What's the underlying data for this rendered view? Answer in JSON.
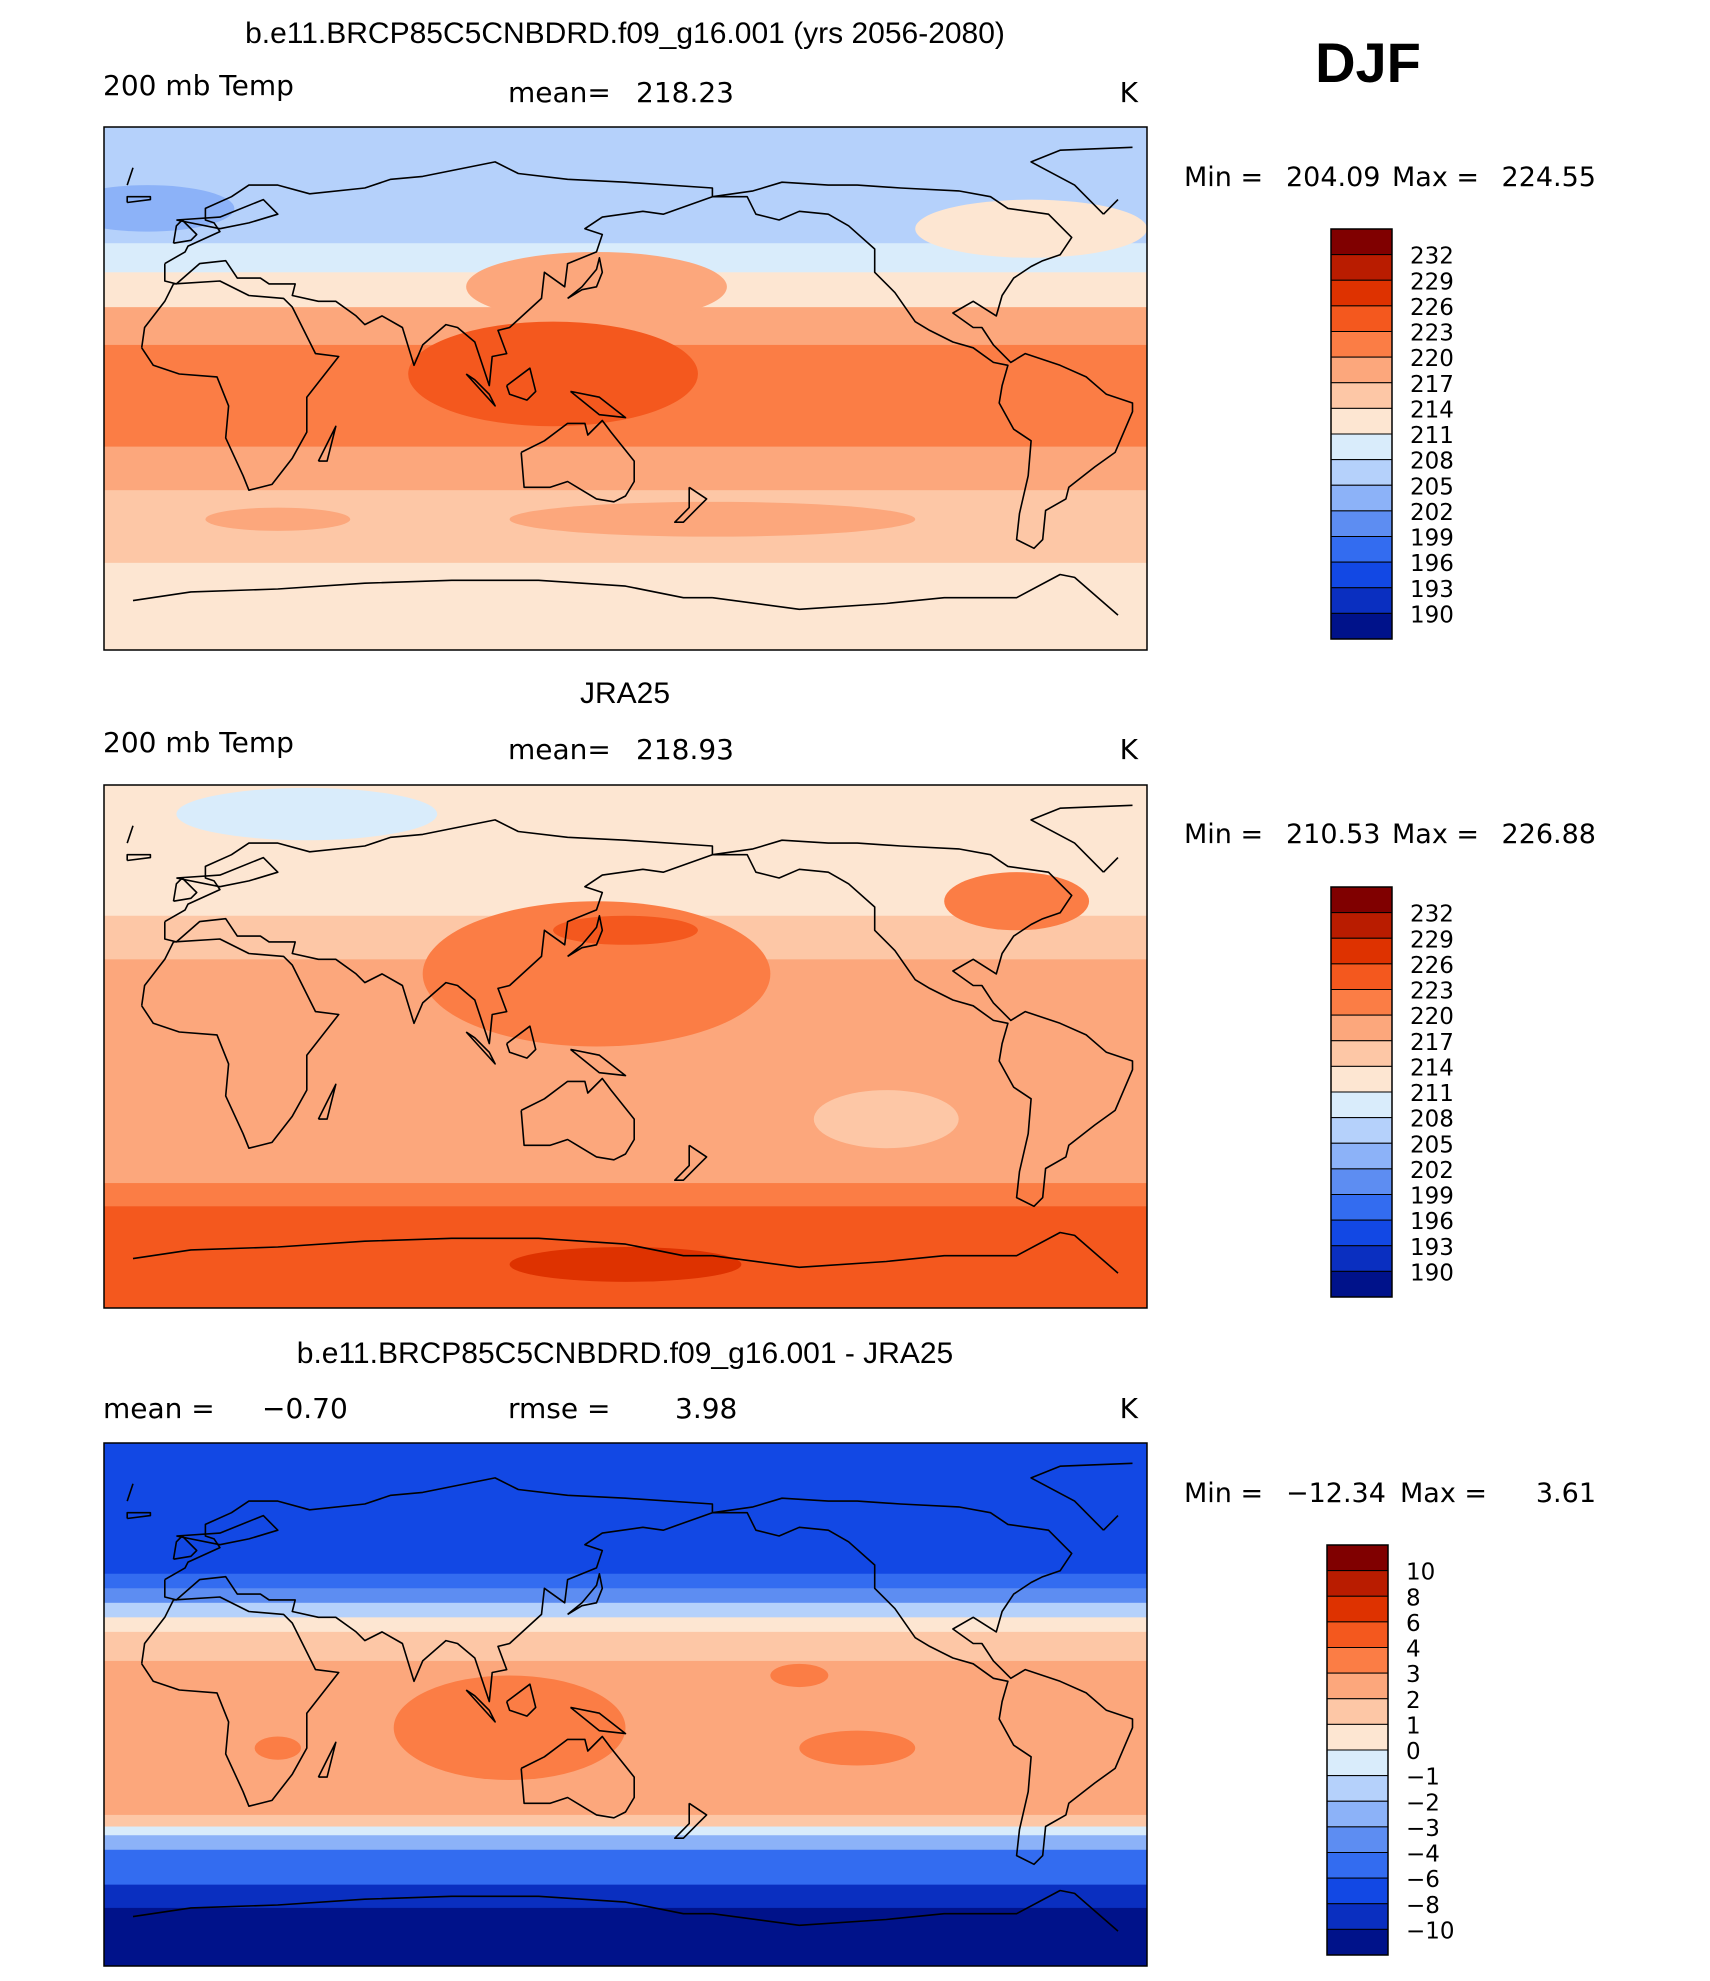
{
  "season": "DJF",
  "chart_data": [
    {
      "type": "heatmap",
      "title": "b.e11.BRCP85C5CNBDRD.f09_g16.001 (yrs 2056-2080)",
      "variable": "200 mb Temp",
      "stat_label": "mean=",
      "stat_value": "218.23",
      "units": "K",
      "min": "204.09",
      "max": "224.55",
      "levels": [
        "232",
        "229",
        "226",
        "223",
        "220",
        "217",
        "214",
        "211",
        "208",
        "205",
        "202",
        "199",
        "196",
        "193",
        "190"
      ],
      "colors": [
        "#800000",
        "#b91c00",
        "#de3200",
        "#f4581e",
        "#fb7d45",
        "#fca77c",
        "#fdc7a6",
        "#fde6d2",
        "#d9ecfb",
        "#b5d1fb",
        "#8cb2f8",
        "#5d8df2",
        "#336cf0",
        "#1248e4",
        "#0a2fc0",
        "#00128a"
      ],
      "zones": [
        {
          "lat": 90,
          "level": 9
        },
        {
          "lat": 60,
          "level": 9
        },
        {
          "lat": 50,
          "level": 8
        },
        {
          "lat": 40,
          "level": 7
        },
        {
          "lat": 28,
          "level": 5
        },
        {
          "lat": 15,
          "level": 4
        },
        {
          "lat": 0,
          "level": 4
        },
        {
          "lat": -20,
          "level": 5
        },
        {
          "lat": -35,
          "level": 6
        },
        {
          "lat": -50,
          "level": 6
        },
        {
          "lat": -60,
          "level": 7
        },
        {
          "lat": -90,
          "level": 7
        }
      ],
      "features": [
        {
          "lon": 125,
          "lat": 5,
          "rx": 50,
          "ry": 18,
          "level": 3
        },
        {
          "lon": 140,
          "lat": 35,
          "rx": 45,
          "ry": 12,
          "level": 5
        },
        {
          "lon": -70,
          "lat": 55,
          "rx": 40,
          "ry": 10,
          "level": 7
        },
        {
          "lon": -15,
          "lat": 62,
          "rx": 30,
          "ry": 8,
          "level": 10
        },
        {
          "lon": 180,
          "lat": -45,
          "rx": 70,
          "ry": 6,
          "level": 5
        },
        {
          "lon": 30,
          "lat": -45,
          "rx": 25,
          "ry": 4,
          "level": 5
        }
      ]
    },
    {
      "type": "heatmap",
      "title": "JRA25",
      "variable": "200 mb Temp",
      "stat_label": "mean=",
      "stat_value": "218.93",
      "units": "K",
      "min": "210.53",
      "max": "226.88",
      "levels": [
        "232",
        "229",
        "226",
        "223",
        "220",
        "217",
        "214",
        "211",
        "208",
        "205",
        "202",
        "199",
        "196",
        "193",
        "190"
      ],
      "colors": [
        "#800000",
        "#b91c00",
        "#de3200",
        "#f4581e",
        "#fb7d45",
        "#fca77c",
        "#fdc7a6",
        "#fde6d2",
        "#d9ecfb",
        "#b5d1fb",
        "#8cb2f8",
        "#5d8df2",
        "#336cf0",
        "#1248e4",
        "#0a2fc0",
        "#00128a"
      ],
      "zones": [
        {
          "lat": 90,
          "level": 7
        },
        {
          "lat": 60,
          "level": 7
        },
        {
          "lat": 45,
          "level": 6
        },
        {
          "lat": 30,
          "level": 5
        },
        {
          "lat": 0,
          "level": 5
        },
        {
          "lat": -25,
          "level": 5
        },
        {
          "lat": -40,
          "level": 5
        },
        {
          "lat": -47,
          "level": 4
        },
        {
          "lat": -55,
          "level": 3
        },
        {
          "lat": -90,
          "level": 3
        }
      ],
      "features": [
        {
          "lon": 140,
          "lat": 25,
          "rx": 60,
          "ry": 25,
          "level": 4
        },
        {
          "lon": 150,
          "lat": 40,
          "rx": 25,
          "ry": 5,
          "level": 3
        },
        {
          "lon": -75,
          "lat": 50,
          "rx": 25,
          "ry": 10,
          "level": 4
        },
        {
          "lon": -120,
          "lat": -25,
          "rx": 25,
          "ry": 10,
          "level": 6
        },
        {
          "lon": 40,
          "lat": 80,
          "rx": 45,
          "ry": 9,
          "level": 8
        },
        {
          "lon": 150,
          "lat": -75,
          "rx": 40,
          "ry": 6,
          "level": 2
        }
      ]
    },
    {
      "type": "heatmap",
      "title": "b.e11.BRCP85C5CNBDRD.f09_g16.001 - JRA25",
      "stat_label": "mean =",
      "stat_value": "−0.70",
      "rmse_label": "rmse =",
      "rmse_value": "3.98",
      "units": "K",
      "min": "−12.34",
      "max": "3.61",
      "levels": [
        "10",
        "8",
        "6",
        "4",
        "3",
        "2",
        "1",
        "0",
        "−1",
        "−2",
        "−3",
        "−4",
        "−6",
        "−8",
        "−10"
      ],
      "colors": [
        "#800000",
        "#b91c00",
        "#de3200",
        "#f4581e",
        "#fb7d45",
        "#fca77c",
        "#fdc7a6",
        "#fde6d2",
        "#d9ecfb",
        "#b5d1fb",
        "#8cb2f8",
        "#5d8df2",
        "#336cf0",
        "#1248e4",
        "#0a2fc0",
        "#00128a"
      ],
      "zones": [
        {
          "lat": 90,
          "level": 13
        },
        {
          "lat": 55,
          "level": 13
        },
        {
          "lat": 45,
          "level": 12
        },
        {
          "lat": 40,
          "level": 11
        },
        {
          "lat": 35,
          "level": 9
        },
        {
          "lat": 30,
          "level": 7
        },
        {
          "lat": 25,
          "level": 6
        },
        {
          "lat": 15,
          "level": 5
        },
        {
          "lat": -30,
          "level": 5
        },
        {
          "lat": -38,
          "level": 6
        },
        {
          "lat": -42,
          "level": 8
        },
        {
          "lat": -45,
          "level": 10
        },
        {
          "lat": -50,
          "level": 12
        },
        {
          "lat": -62,
          "level": 14
        },
        {
          "lat": -70,
          "level": 15
        },
        {
          "lat": -90,
          "level": 15
        }
      ],
      "features": [
        {
          "lon": 110,
          "lat": -8,
          "rx": 40,
          "ry": 18,
          "level": 4
        },
        {
          "lon": -130,
          "lat": -15,
          "rx": 20,
          "ry": 6,
          "level": 4
        },
        {
          "lon": -150,
          "lat": 10,
          "rx": 10,
          "ry": 4,
          "level": 4
        },
        {
          "lon": 30,
          "lat": -15,
          "rx": 8,
          "ry": 4,
          "level": 4
        }
      ]
    }
  ]
}
